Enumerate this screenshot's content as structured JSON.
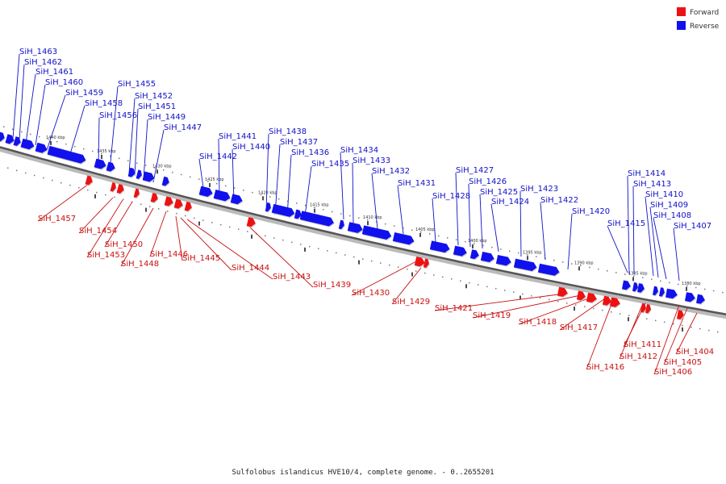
{
  "legend": {
    "forward_label": "Forward",
    "reverse_label": "Reverse",
    "forward_color": "#ee1111",
    "reverse_color": "#1111ee"
  },
  "footer": "Sulfolobus islandicus HVE10/4, complete genome. - 0..2655201",
  "ticks": [
    "1440 kbp",
    "1435 kbp",
    "1430 kbp",
    "1425 kbp",
    "1420 kbp",
    "1415 kbp",
    "1410 kbp",
    "1405 kbp",
    "1400 kbp",
    "1395 kbp",
    "1390 kbp",
    "1385 kbp",
    "1380 kbp"
  ],
  "reverse_genes": [
    "SiH_1463",
    "SiH_1462",
    "SiH_1461",
    "SiH_1460",
    "SiH_1459",
    "SiH_1458",
    "SiH_1456",
    "SiH_1455",
    "SiH_1452",
    "SiH_1451",
    "SiH_1449",
    "SiH_1447",
    "SiH_1442",
    "SiH_1441",
    "SiH_1440",
    "SiH_1438",
    "SiH_1437",
    "SiH_1436",
    "SiH_1435",
    "SiH_1434",
    "SiH_1433",
    "SiH_1432",
    "SiH_1431",
    "SiH_1428",
    "SiH_1427",
    "SiH_1426",
    "SiH_1425",
    "SiH_1424",
    "SiH_1423",
    "SiH_1422",
    "SiH_1420",
    "SiH_1415",
    "SiH_1414",
    "SiH_1413",
    "SiH_1410",
    "SiH_1409",
    "SiH_1408",
    "SiH_1407"
  ],
  "forward_genes": [
    "SiH_1457",
    "SiH_1454",
    "SiH_1453",
    "SiH_1450",
    "SiH_1448",
    "SiH_1446",
    "SiH_1445",
    "SiH_1444",
    "SiH_1443",
    "SiH_1439",
    "SiH_1430",
    "SiH_1429",
    "SiH_1421",
    "SiH_1419",
    "SiH_1418",
    "SiH_1417",
    "SiH_1416",
    "SiH_1412",
    "SiH_1411",
    "SiH_1406",
    "SiH_1405",
    "SiH_1404"
  ]
}
